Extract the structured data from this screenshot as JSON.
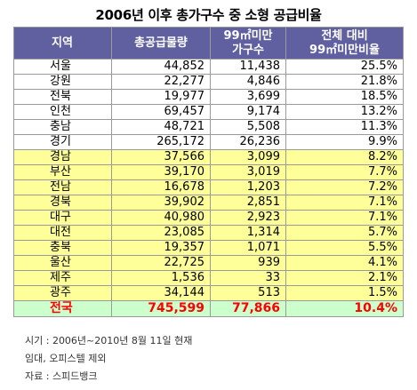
{
  "title": "2006년 이후 총가구수 중 소형 공급비율",
  "headers": {
    "region": "지역",
    "total_supply": "총공급물량",
    "small_line1": "99㎡미만",
    "small_line2": "가구수",
    "ratio_line1": "전체 대비",
    "ratio_line2": "99㎡미만비율"
  },
  "rows": [
    {
      "region": "서울",
      "total": "44,852",
      "small": "11,438",
      "ratio": "25.5%",
      "group": "white"
    },
    {
      "region": "강원",
      "total": "22,277",
      "small": "4,846",
      "ratio": "21.8%",
      "group": "white"
    },
    {
      "region": "전북",
      "total": "19,977",
      "small": "3,699",
      "ratio": "18.5%",
      "group": "white"
    },
    {
      "region": "인천",
      "total": "69,457",
      "small": "9,174",
      "ratio": "13.2%",
      "group": "white"
    },
    {
      "region": "충남",
      "total": "48,721",
      "small": "5,508",
      "ratio": "11.3%",
      "group": "white"
    },
    {
      "region": "경기",
      "total": "265,172",
      "small": "26,236",
      "ratio": "9.9%",
      "group": "white"
    },
    {
      "region": "경남",
      "total": "37,566",
      "small": "3,099",
      "ratio": "8.2%",
      "group": "yellow"
    },
    {
      "region": "부산",
      "total": "39,170",
      "small": "3,019",
      "ratio": "7.7%",
      "group": "yellow"
    },
    {
      "region": "전남",
      "total": "16,678",
      "small": "1,203",
      "ratio": "7.2%",
      "group": "yellow"
    },
    {
      "region": "경북",
      "total": "39,902",
      "small": "2,851",
      "ratio": "7.1%",
      "group": "yellow"
    },
    {
      "region": "대구",
      "total": "40,980",
      "small": "2,923",
      "ratio": "7.1%",
      "group": "yellow"
    },
    {
      "region": "대전",
      "total": "23,085",
      "small": "1,314",
      "ratio": "5.7%",
      "group": "yellow"
    },
    {
      "region": "충북",
      "total": "19,357",
      "small": "1,071",
      "ratio": "5.5%",
      "group": "yellow"
    },
    {
      "region": "울산",
      "total": "22,725",
      "small": "939",
      "ratio": "4.1%",
      "group": "yellow"
    },
    {
      "region": "제주",
      "total": "1,536",
      "small": "33",
      "ratio": "2.1%",
      "group": "yellow"
    },
    {
      "region": "광주",
      "total": "34,144",
      "small": "513",
      "ratio": "1.5%",
      "group": "yellow"
    }
  ],
  "total_row": {
    "region": "전국",
    "total": "745,599",
    "small": "77,866",
    "ratio": "10.4%"
  },
  "notes": [
    "시기 : 2006년~2010년 8월 11일 현재",
    "임대, 오피스텔 제외",
    "자료 : 스피드뱅크"
  ],
  "colors": {
    "header_bg": "#6060a0",
    "header_text": "#ffffff",
    "highlight_rows": "#ffff99",
    "total_row_bg": "#ccffcc",
    "total_row_text": "#ff0000"
  }
}
